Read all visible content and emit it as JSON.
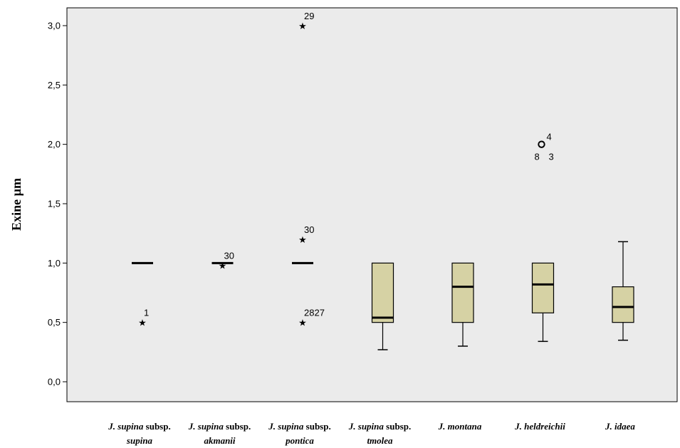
{
  "colors": {
    "plot_background": "#ebebeb",
    "box_fill": "#d6d2a4",
    "line": "#000000"
  },
  "chart_data": {
    "type": "box",
    "title": "",
    "ylabel": "Exine µm",
    "xlabel": "",
    "ylim": [
      -0.15,
      3.15
    ],
    "yticks": [
      {
        "value": 0.0,
        "label": "0,0"
      },
      {
        "value": 0.5,
        "label": "0,5"
      },
      {
        "value": 1.0,
        "label": "1,0"
      },
      {
        "value": 1.5,
        "label": "1,5"
      },
      {
        "value": 2.0,
        "label": "2,0"
      },
      {
        "value": 2.5,
        "label": "2,5"
      },
      {
        "value": 3.0,
        "label": "3,0"
      }
    ],
    "grid": false,
    "categories": [
      {
        "line1_italic": "J. supina",
        "line1_normal": " subsp.",
        "line2_italic": "supina"
      },
      {
        "line1_italic": "J. supina",
        "line1_normal": " subsp.",
        "line2_italic": "akmanii"
      },
      {
        "line1_italic": "J. supina",
        "line1_normal": " subsp.",
        "line2_italic": "pontica"
      },
      {
        "line1_italic": "J. supina",
        "line1_normal": " subsp.",
        "line2_italic": "tmolea"
      },
      {
        "line1_italic": "J. montana",
        "line1_normal": "",
        "line2_italic": ""
      },
      {
        "line1_italic": "J. heldreichii",
        "line1_normal": "",
        "line2_italic": ""
      },
      {
        "line1_italic": "J. idaea",
        "line1_normal": "",
        "line2_italic": ""
      }
    ],
    "boxes": [
      {
        "min": 1.0,
        "q1": 1.0,
        "median": 1.0,
        "q3": 1.0,
        "max": 1.0,
        "outliers": [
          {
            "y": 0.5,
            "marker": "star",
            "label": "1"
          }
        ]
      },
      {
        "min": 1.0,
        "q1": 1.0,
        "median": 1.0,
        "q3": 1.0,
        "max": 1.0,
        "outliers": [
          {
            "y": 0.98,
            "marker": "star",
            "label": "30"
          }
        ]
      },
      {
        "min": 1.0,
        "q1": 1.0,
        "median": 1.0,
        "q3": 1.0,
        "max": 1.0,
        "outliers": [
          {
            "y": 3.0,
            "marker": "star",
            "label": "29"
          },
          {
            "y": 1.2,
            "marker": "star",
            "label": "30"
          },
          {
            "y": 0.5,
            "marker": "star",
            "label": "2827"
          }
        ]
      },
      {
        "min": 0.27,
        "q1": 0.5,
        "median": 0.54,
        "q3": 1.0,
        "max": 1.0,
        "outliers": []
      },
      {
        "min": 0.3,
        "q1": 0.5,
        "median": 0.8,
        "q3": 1.0,
        "max": 1.0,
        "outliers": []
      },
      {
        "min": 0.34,
        "q1": 0.58,
        "median": 0.82,
        "q3": 1.0,
        "max": 1.0,
        "outliers": [
          {
            "y": 2.0,
            "marker": "circle",
            "label": "4",
            "extra_labels": [
              "8",
              "3"
            ]
          }
        ]
      },
      {
        "min": 0.35,
        "q1": 0.5,
        "median": 0.63,
        "q3": 0.8,
        "max": 1.18,
        "outliers": []
      }
    ]
  }
}
